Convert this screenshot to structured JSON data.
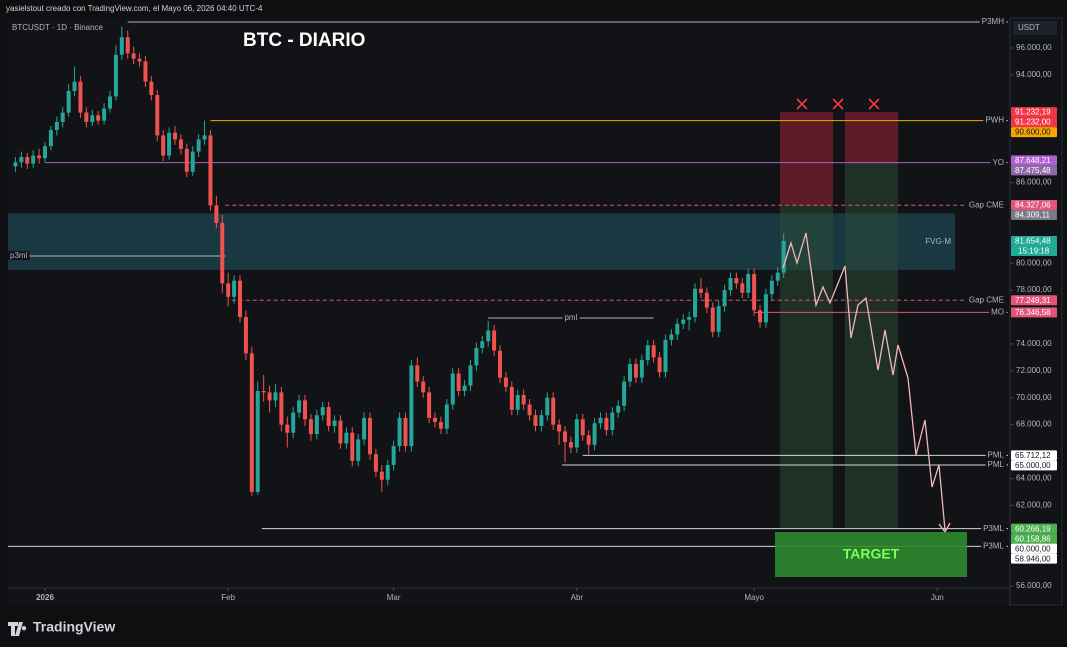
{
  "header": {
    "attribution": "yasielstout creado con TradingView.com, el Mayo 06, 2026 04:40 UTC-4",
    "symbol": "BTCUSDT · 1D · Binance",
    "currency": "USDT"
  },
  "footer": {
    "brand": "TradingView"
  },
  "chart_data": {
    "type": "candlestick",
    "title": "BTC - DIARIO",
    "up_color": "#26a69a",
    "down_color": "#ef5350",
    "xlim": [
      -5.26,
      164.3
    ],
    "xticks": [
      {
        "value": 1,
        "label": "2026"
      },
      {
        "value": 32,
        "label": "Feb"
      },
      {
        "value": 60,
        "label": "Mar"
      },
      {
        "value": 91,
        "label": "Abr"
      },
      {
        "value": 121,
        "label": "Mayo"
      },
      {
        "value": 152,
        "label": "Jun"
      }
    ],
    "ylim": [
      54590,
      98230
    ],
    "yticks": [
      {
        "value": 96000,
        "label": "96.000,00"
      },
      {
        "value": 94000,
        "label": "94.000,00"
      },
      {
        "value": 86000,
        "label": "86.000,00"
      },
      {
        "value": 80000,
        "label": "80.000,00"
      },
      {
        "value": 78000,
        "label": "78.000,00"
      },
      {
        "value": 74000,
        "label": "74.000,00"
      },
      {
        "value": 72000,
        "label": "72.000,00"
      },
      {
        "value": 70000,
        "label": "70.000,00"
      },
      {
        "value": 68000,
        "label": "68.000,00"
      },
      {
        "value": 64000,
        "label": "64.000,00"
      },
      {
        "value": 62000,
        "label": "62.000,00"
      },
      {
        "value": 56000,
        "label": "56.000,00"
      }
    ],
    "candles": [
      [
        -4,
        87200,
        87900,
        86800,
        87500
      ],
      [
        -3,
        87500,
        88300,
        87100,
        87900
      ],
      [
        -2,
        87900,
        88200,
        87000,
        87400
      ],
      [
        -1,
        87400,
        88400,
        87100,
        88000
      ],
      [
        0,
        88000,
        88500,
        87400,
        87800
      ],
      [
        1,
        87800,
        89000,
        87500,
        88700
      ],
      [
        2,
        88700,
        90200,
        88400,
        89900
      ],
      [
        3,
        89900,
        90900,
        89500,
        90500
      ],
      [
        4,
        90500,
        91600,
        90100,
        91200
      ],
      [
        5,
        91200,
        93300,
        90900,
        92800
      ],
      [
        6,
        92800,
        94600,
        92400,
        93500
      ],
      [
        7,
        93500,
        93900,
        90800,
        91200
      ],
      [
        8,
        91200,
        91600,
        90100,
        90500
      ],
      [
        9,
        90500,
        91400,
        90200,
        91000
      ],
      [
        10,
        91000,
        91300,
        90300,
        90600
      ],
      [
        11,
        90600,
        91900,
        90300,
        91500
      ],
      [
        12,
        91500,
        92800,
        91200,
        92400
      ],
      [
        13,
        92400,
        96200,
        92100,
        95500
      ],
      [
        14,
        95500,
        97600,
        95100,
        96800
      ],
      [
        15,
        96800,
        97300,
        95200,
        95600
      ],
      [
        16,
        95600,
        96100,
        94800,
        95200
      ],
      [
        17,
        95200,
        95600,
        94600,
        95000
      ],
      [
        18,
        95000,
        95400,
        93100,
        93500
      ],
      [
        19,
        93500,
        93900,
        92100,
        92500
      ],
      [
        20,
        92500,
        92900,
        89100,
        89500
      ],
      [
        21,
        89500,
        89900,
        87600,
        88000
      ],
      [
        22,
        88000,
        90100,
        87700,
        89700
      ],
      [
        23,
        89700,
        90200,
        88800,
        89200
      ],
      [
        24,
        89200,
        89600,
        88100,
        88500
      ],
      [
        25,
        88500,
        88900,
        86400,
        86800
      ],
      [
        26,
        86800,
        88700,
        86500,
        88300
      ],
      [
        27,
        88300,
        89600,
        87900,
        89200
      ],
      [
        28,
        89200,
        90600,
        88800,
        89500
      ],
      [
        29,
        89500,
        89900,
        83900,
        84300
      ],
      [
        30,
        84300,
        85000,
        82600,
        83000
      ],
      [
        31,
        83000,
        83600,
        77800,
        78500
      ],
      [
        32,
        78500,
        79300,
        76800,
        77500
      ],
      [
        33,
        77500,
        79100,
        77000,
        78700
      ],
      [
        34,
        78700,
        79100,
        75600,
        76000
      ],
      [
        35,
        76000,
        76500,
        72800,
        73300
      ],
      [
        36,
        73300,
        73800,
        62700,
        63000
      ],
      [
        37,
        63000,
        71200,
        62800,
        70500
      ],
      [
        38,
        70500,
        71700,
        69700,
        70400
      ],
      [
        39,
        70400,
        70900,
        68900,
        69800
      ],
      [
        40,
        69800,
        71000,
        69300,
        70400
      ],
      [
        41,
        70400,
        70800,
        67500,
        68000
      ],
      [
        42,
        68000,
        68600,
        66300,
        67400
      ],
      [
        43,
        67400,
        69300,
        67000,
        68900
      ],
      [
        44,
        68900,
        70200,
        68500,
        69800
      ],
      [
        45,
        69800,
        70200,
        67900,
        68400
      ],
      [
        46,
        68400,
        68800,
        66800,
        67300
      ],
      [
        47,
        67300,
        69100,
        66900,
        68700
      ],
      [
        48,
        68700,
        69700,
        68300,
        69300
      ],
      [
        49,
        69300,
        69700,
        67500,
        67900
      ],
      [
        50,
        67900,
        68700,
        67400,
        68300
      ],
      [
        51,
        68300,
        68700,
        66200,
        66600
      ],
      [
        52,
        66600,
        67800,
        66200,
        67400
      ],
      [
        53,
        67400,
        67800,
        64900,
        65300
      ],
      [
        54,
        65300,
        67300,
        64900,
        66900
      ],
      [
        55,
        66900,
        68900,
        66500,
        68500
      ],
      [
        56,
        68500,
        68900,
        65400,
        65800
      ],
      [
        57,
        65800,
        66200,
        64100,
        64500
      ],
      [
        58,
        64500,
        65000,
        63000,
        63900
      ],
      [
        59,
        63900,
        65400,
        63500,
        65000
      ],
      [
        60,
        65000,
        66800,
        64600,
        66400
      ],
      [
        61,
        66400,
        68900,
        66000,
        68500
      ],
      [
        62,
        68500,
        68900,
        66000,
        66400
      ],
      [
        63,
        66400,
        72800,
        66000,
        72400
      ],
      [
        64,
        72400,
        73000,
        70800,
        71200
      ],
      [
        65,
        71200,
        71600,
        70000,
        70400
      ],
      [
        66,
        70400,
        70800,
        68100,
        68500
      ],
      [
        67,
        68500,
        68900,
        67800,
        68200
      ],
      [
        68,
        68200,
        68600,
        67300,
        67700
      ],
      [
        69,
        67700,
        69900,
        67300,
        69500
      ],
      [
        70,
        69500,
        72200,
        69100,
        71800
      ],
      [
        71,
        71800,
        72200,
        70100,
        70500
      ],
      [
        72,
        70500,
        71300,
        70100,
        70900
      ],
      [
        73,
        70900,
        72800,
        70500,
        72400
      ],
      [
        74,
        72400,
        74100,
        72000,
        73700
      ],
      [
        75,
        73700,
        74600,
        73300,
        74200
      ],
      [
        76,
        74200,
        75700,
        73800,
        75000
      ],
      [
        77,
        75000,
        75400,
        73100,
        73500
      ],
      [
        78,
        73500,
        73900,
        71100,
        71500
      ],
      [
        79,
        71500,
        71900,
        70400,
        70800
      ],
      [
        80,
        70800,
        71200,
        68700,
        69100
      ],
      [
        81,
        69100,
        70600,
        68700,
        70200
      ],
      [
        82,
        70200,
        70600,
        69100,
        69500
      ],
      [
        83,
        69500,
        69900,
        68300,
        68700
      ],
      [
        84,
        68700,
        69100,
        67500,
        67900
      ],
      [
        85,
        67900,
        69100,
        67500,
        68700
      ],
      [
        86,
        68700,
        70400,
        68300,
        70000
      ],
      [
        87,
        70000,
        70400,
        67600,
        68000
      ],
      [
        88,
        68000,
        68400,
        66500,
        67500
      ],
      [
        89,
        67500,
        67900,
        65200,
        66700
      ],
      [
        90,
        66700,
        67100,
        65900,
        66300
      ],
      [
        91,
        66300,
        68800,
        65900,
        68400
      ],
      [
        92,
        68400,
        68800,
        66800,
        67200
      ],
      [
        93,
        67200,
        67600,
        65800,
        66500
      ],
      [
        94,
        66500,
        68500,
        66100,
        68100
      ],
      [
        95,
        68100,
        68900,
        67700,
        68500
      ],
      [
        96,
        68500,
        68900,
        67200,
        67600
      ],
      [
        97,
        67600,
        69300,
        67200,
        68900
      ],
      [
        98,
        68900,
        69800,
        68500,
        69400
      ],
      [
        99,
        69400,
        71600,
        69000,
        71200
      ],
      [
        100,
        71200,
        72900,
        70800,
        72500
      ],
      [
        101,
        72500,
        72900,
        71100,
        71500
      ],
      [
        102,
        71500,
        73200,
        71100,
        72800
      ],
      [
        103,
        72800,
        74300,
        72400,
        73900
      ],
      [
        104,
        73900,
        74300,
        72600,
        73000
      ],
      [
        105,
        73000,
        73400,
        71500,
        71900
      ],
      [
        106,
        71900,
        74700,
        71500,
        74300
      ],
      [
        107,
        74300,
        75100,
        73900,
        74700
      ],
      [
        108,
        74700,
        75900,
        74300,
        75500
      ],
      [
        109,
        75500,
        76200,
        75100,
        75800
      ],
      [
        110,
        75800,
        76400,
        75000,
        76000
      ],
      [
        111,
        76000,
        78500,
        75600,
        78100
      ],
      [
        112,
        78100,
        78900,
        77400,
        77800
      ],
      [
        113,
        77800,
        78200,
        76300,
        76700
      ],
      [
        114,
        76700,
        77100,
        74500,
        74900
      ],
      [
        115,
        74900,
        77200,
        74500,
        76800
      ],
      [
        116,
        76800,
        78400,
        76400,
        78000
      ],
      [
        117,
        78000,
        79300,
        77600,
        78900
      ],
      [
        118,
        78900,
        79300,
        78100,
        78500
      ],
      [
        119,
        78500,
        78900,
        77400,
        77800
      ],
      [
        120,
        77800,
        79600,
        77400,
        79200
      ],
      [
        121,
        79200,
        79600,
        76100,
        76500
      ],
      [
        122,
        76500,
        76900,
        75200,
        75600
      ],
      [
        123,
        75600,
        78100,
        75200,
        77700
      ],
      [
        124,
        77700,
        79100,
        77300,
        78700
      ],
      [
        125,
        78700,
        79700,
        78300,
        79300
      ],
      [
        126,
        79300,
        82200,
        78900,
        81650
      ]
    ],
    "zones": [
      {
        "name": "FVG-M",
        "low": 79500,
        "high": 83700,
        "start": -5.26,
        "end": 155,
        "color": "#1c4650"
      }
    ],
    "levels": [
      {
        "name": "P3MH",
        "value": 97930,
        "start": 15,
        "color": "#b2b5be",
        "dashed": false,
        "label_at": "end"
      },
      {
        "name": "PWH",
        "value": 90600,
        "start": 29,
        "color": "#f7a600",
        "dashed": false,
        "label_at": "end"
      },
      {
        "name": "YO",
        "value": 87475.48,
        "start": 1,
        "color": "#9c6ab5",
        "dashed": false,
        "label_at": "end"
      },
      {
        "name": "Gap CME",
        "value": 84309.11,
        "start": 31.5,
        "color": "#e0557a",
        "dashed": true,
        "label_at": "end"
      },
      {
        "name": "p3ml",
        "value": 80535,
        "start": -5.26,
        "end": 31.5,
        "color": "#b2b5be",
        "dashed": false,
        "label_at": "start"
      },
      {
        "name": "Gap CME",
        "value": 77249.31,
        "start": 32.6,
        "color": "#e0557a",
        "dashed": true,
        "label_at": "end"
      },
      {
        "name": "MO",
        "value": 76346.58,
        "start": 121,
        "color": "#e0557a",
        "dashed": false,
        "label_at": "end"
      },
      {
        "name": "pml",
        "value": 75925,
        "start": 76,
        "end": 104,
        "color": "#b2b5be",
        "dashed": false,
        "label_at": "middle"
      },
      {
        "name": "PML",
        "value": 65712.12,
        "start": 92,
        "color": "#d1d4dc",
        "dashed": false,
        "label_at": "end"
      },
      {
        "name": "PML",
        "value": 65000,
        "start": 88.5,
        "color": "#d1d4dc",
        "dashed": false,
        "label_at": "end"
      },
      {
        "name": "P3ML",
        "value": 60266.19,
        "start": 37.7,
        "color": "#d1d4dc",
        "dashed": false,
        "label_at": "end"
      },
      {
        "name": "P3ML",
        "value": 58946,
        "start": -5.26,
        "color": "#d1d4dc",
        "dashed": false,
        "label_at": "end"
      }
    ],
    "price_labels": [
      {
        "value": 91232.19,
        "label": "91.232,19",
        "color": "#f23645",
        "text_color": "#ffffff"
      },
      {
        "value": 91232,
        "label": "91.232,00",
        "color": "#f23645",
        "text_color": "#ffffff"
      },
      {
        "value": 90600,
        "label": "90.600,00",
        "color": "#f7a600",
        "text_color": "#131722"
      },
      {
        "value": 87648.21,
        "label": "87.648,21",
        "color": "#b05fd0",
        "text_color": "#ffffff"
      },
      {
        "value": 87475.48,
        "label": "87.475,48",
        "color": "#8e6aa6",
        "text_color": "#ffffff"
      },
      {
        "value": 84327.06,
        "label": "84.327,06",
        "color": "#e0557a",
        "text_color": "#ffffff"
      },
      {
        "value": 84309.11,
        "label": "84.309,11",
        "color": "#787b86",
        "text_color": "#ffffff"
      },
      {
        "value": 81654.48,
        "label": "81.654,48",
        "color": "#22ab94",
        "text_color": "#ffffff"
      },
      {
        "value": 77249.31,
        "label": "77.249,31",
        "color": "#e0557a",
        "text_color": "#ffffff"
      },
      {
        "value": 76346.58,
        "label": "76.346,58",
        "color": "#e0557a",
        "text_color": "#ffffff"
      },
      {
        "value": 65712.12,
        "label": "65.712,12",
        "color": "#ffffff",
        "text_color": "#131722"
      },
      {
        "value": 65000,
        "label": "65.000,00",
        "color": "#ffffff",
        "text_color": "#131722"
      },
      {
        "value": 60266.19,
        "label": "60.266,19",
        "color": "#4caf50",
        "text_color": "#ffffff"
      },
      {
        "value": 60158.86,
        "label": "60.158,86",
        "color": "#4caf50",
        "text_color": "#ffffff"
      },
      {
        "value": 60000,
        "label": "60.000,00",
        "color": "#ffffff",
        "text_color": "#131722"
      },
      {
        "value": 58946,
        "label": "58.946,00",
        "color": "#ffffff",
        "text_color": "#131722"
      }
    ],
    "countdown": "15:19:18",
    "target_label": "TARGET"
  }
}
